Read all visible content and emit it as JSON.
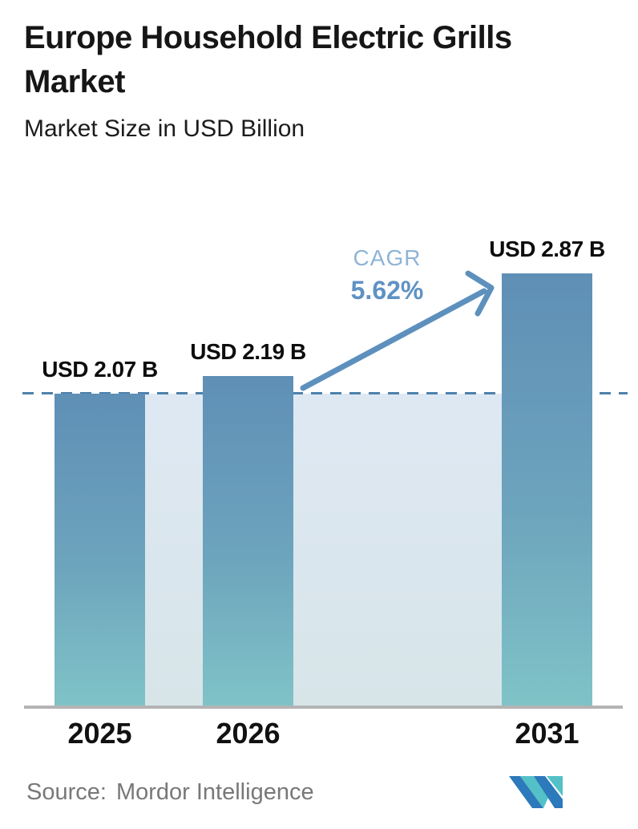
{
  "header": {
    "title": "Europe Household Electric Grills Market",
    "subtitle": "Market Size in USD Billion"
  },
  "cagr": {
    "label": "CAGR",
    "value": "5.62%"
  },
  "source": {
    "label": "Source:",
    "name": "Mordor Intelligence"
  },
  "logo": {
    "name": "mordor-intelligence-logo",
    "teal": "#53c1c7",
    "blue": "#2c79bb"
  },
  "chart_data": {
    "type": "bar",
    "title": "Europe Household Electric Grills Market",
    "subtitle": "Market Size in USD Billion",
    "unit": "USD Billion",
    "categories": [
      "2025",
      "2026",
      "2031"
    ],
    "values": [
      2.07,
      2.19,
      2.87
    ],
    "value_labels": [
      "USD 2.07 B",
      "USD 2.19 B",
      "USD 2.87 B"
    ],
    "cagr_label": "CAGR",
    "cagr_value": "5.62%",
    "xlabel": "",
    "ylabel": "Market Size (USD Billion)",
    "ylim": [
      0,
      3.6
    ],
    "grid": false,
    "legend": false,
    "annotations": {
      "dashed_reference_value": 2.07,
      "shaded_band": "between 2025 and 2031 bars below dashed reference line",
      "growth_arrow": "from 2026 bar top to 2031 bar top"
    },
    "colors": {
      "bar_gradient_top": "#5f8fb6",
      "bar_gradient_bottom": "#7fc3c7",
      "shade_region_top": "#dee8f3",
      "shade_region_bottom": "#d7e5e9",
      "dashed_line": "#4e81ab",
      "arrow": "#5e90bd",
      "cagr_label_text": "#8fb4d6",
      "cagr_value_text": "#5f92c4",
      "axis_line": "#b4b4b4",
      "value_label_text": "#0d0d0d",
      "title_text": "#161616",
      "source_text": "#787878"
    }
  }
}
